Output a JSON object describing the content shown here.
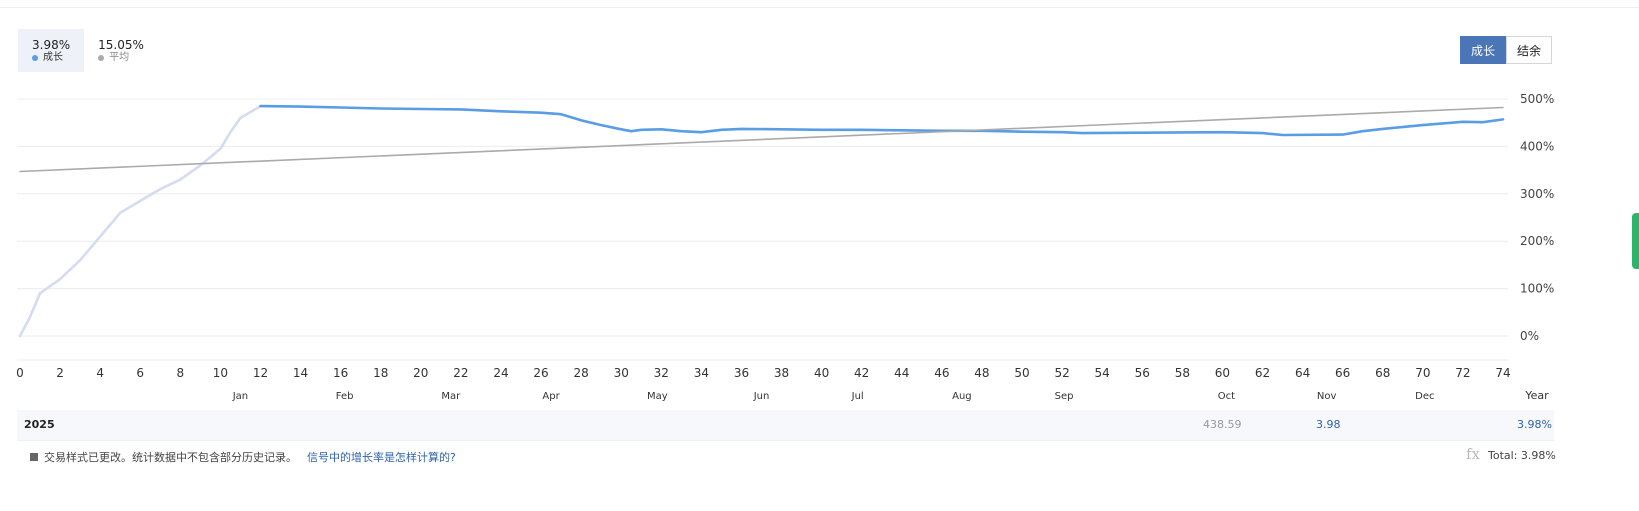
{
  "legend": {
    "items": [
      {
        "value": "3.98%",
        "label": "成长",
        "color": "#5a9de4",
        "active": true
      },
      {
        "value": "15.05%",
        "label": "平均",
        "color": "#aaaaaa",
        "active": false
      }
    ]
  },
  "toggle": {
    "growth": "成长",
    "balance": "结余"
  },
  "chart_data": {
    "type": "line",
    "x_ticks": [
      "0",
      "2",
      "4",
      "6",
      "8",
      "10",
      "12",
      "14",
      "16",
      "18",
      "20",
      "22",
      "24",
      "26",
      "28",
      "30",
      "32",
      "34",
      "36",
      "38",
      "40",
      "42",
      "44",
      "46",
      "48",
      "50",
      "52",
      "54",
      "56",
      "58",
      "60",
      "62",
      "64",
      "66",
      "68",
      "70",
      "72",
      "74"
    ],
    "months": [
      {
        "label": "Jan",
        "x": 11
      },
      {
        "label": "Feb",
        "x": 16.2
      },
      {
        "label": "Mar",
        "x": 21.5
      },
      {
        "label": "Apr",
        "x": 26.5
      },
      {
        "label": "May",
        "x": 31.8
      },
      {
        "label": "Jun",
        "x": 37
      },
      {
        "label": "Jul",
        "x": 41.8
      },
      {
        "label": "Aug",
        "x": 47
      },
      {
        "label": "Sep",
        "x": 52.1
      },
      {
        "label": "Oct",
        "x": 60.2
      },
      {
        "label": "Nov",
        "x": 65.2
      },
      {
        "label": "Dec",
        "x": 70.1
      }
    ],
    "year_axis_label": "Year",
    "y_ticks": [
      "0%",
      "100%",
      "200%",
      "300%",
      "400%",
      "500%"
    ],
    "ylim": [
      0,
      500
    ],
    "xlim": [
      0,
      74
    ],
    "series": [
      {
        "color": "#d4dcf2",
        "values": [
          [
            0,
            0
          ],
          [
            0.5,
            40
          ],
          [
            1,
            90
          ],
          [
            2,
            120
          ],
          [
            3,
            160
          ],
          [
            4,
            210
          ],
          [
            5,
            260
          ],
          [
            6,
            285
          ],
          [
            7,
            310
          ],
          [
            8,
            330
          ],
          [
            9,
            360
          ],
          [
            10,
            395
          ],
          [
            10.5,
            430
          ],
          [
            11,
            460
          ],
          [
            12,
            485
          ]
        ]
      },
      {
        "color": "#5a9de4",
        "values": [
          [
            12,
            485
          ],
          [
            14,
            484
          ],
          [
            16,
            482
          ],
          [
            18,
            480
          ],
          [
            20,
            479
          ],
          [
            22,
            478
          ],
          [
            24,
            474
          ],
          [
            26,
            471
          ],
          [
            27,
            468
          ],
          [
            28,
            455
          ],
          [
            29,
            445
          ],
          [
            30,
            436
          ],
          [
            30.5,
            432
          ],
          [
            31,
            435
          ],
          [
            32,
            436
          ],
          [
            33,
            432
          ],
          [
            34,
            430
          ],
          [
            35,
            435
          ],
          [
            36,
            437
          ],
          [
            38,
            436
          ],
          [
            40,
            435
          ],
          [
            42,
            435
          ],
          [
            44,
            434
          ],
          [
            46,
            433
          ],
          [
            48,
            433
          ],
          [
            50,
            431
          ],
          [
            52,
            430
          ],
          [
            53,
            428
          ],
          [
            56,
            429
          ],
          [
            60,
            430
          ],
          [
            62,
            428
          ],
          [
            63,
            424
          ],
          [
            66,
            425
          ],
          [
            67,
            432
          ],
          [
            68,
            437
          ],
          [
            70,
            445
          ],
          [
            72,
            452
          ],
          [
            73,
            451
          ],
          [
            74,
            457
          ]
        ]
      },
      {
        "color": "#aaaaaa",
        "values": [
          [
            0,
            347
          ],
          [
            74,
            482
          ]
        ]
      }
    ]
  },
  "year_row": {
    "year": "2025",
    "balance": "438.59",
    "nov": "3.98",
    "total": "3.98%"
  },
  "footer": {
    "note": "交易样式已更改。统计数据中不包含部分历史记录。",
    "link": "信号中的增长率是怎样计算的?",
    "total": "Total: 3.98%"
  },
  "watermark": "fx"
}
